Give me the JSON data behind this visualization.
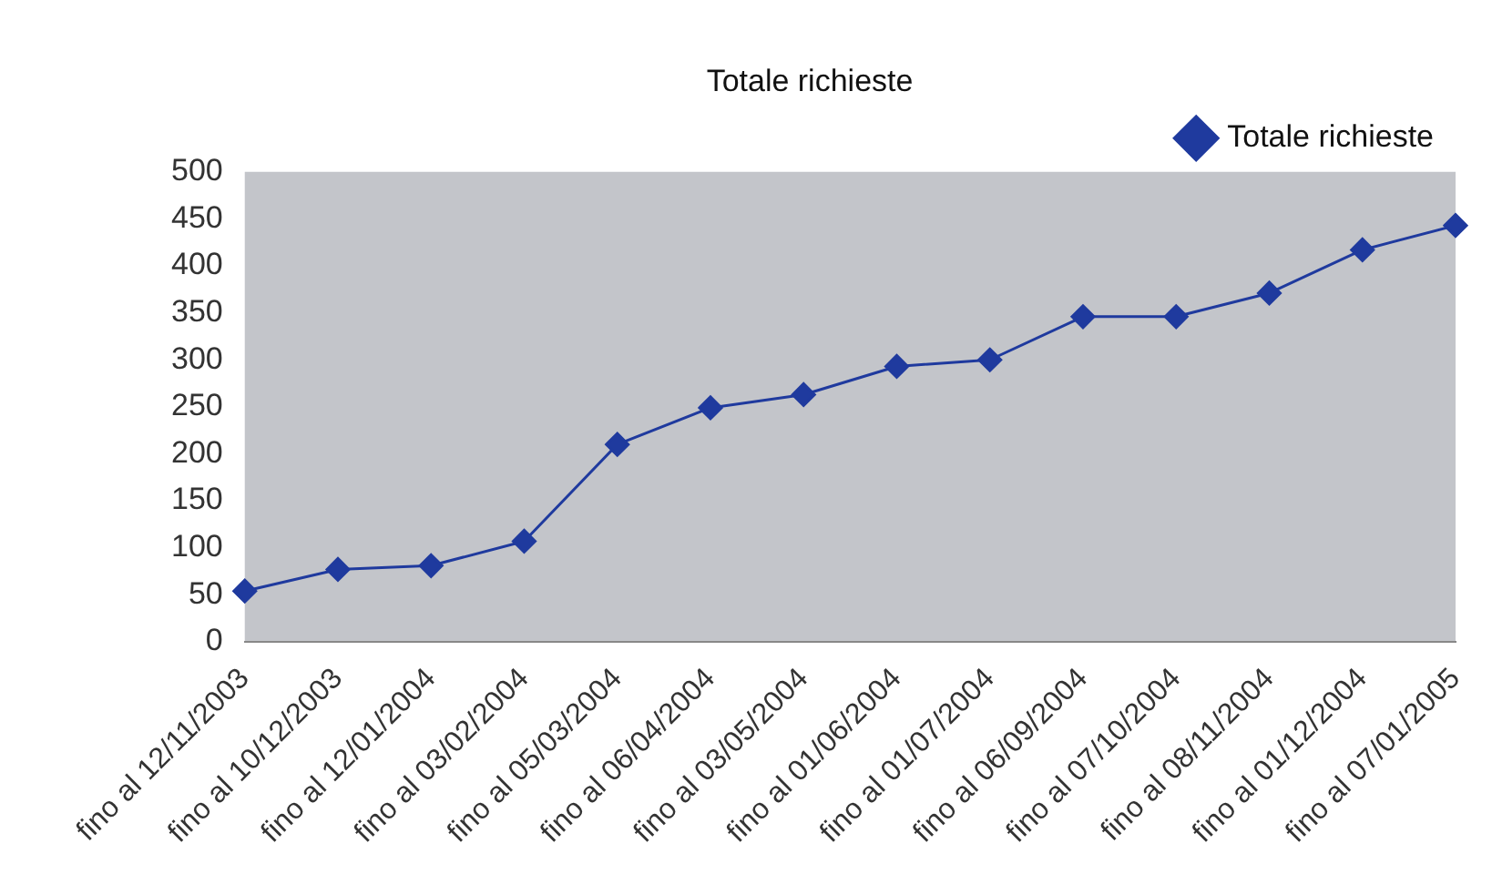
{
  "chart_data": {
    "type": "line",
    "title": "Totale richieste",
    "categories": [
      "fino al 12/11/2003",
      "fino al 10/12/2003",
      "fino al 12/01/2004",
      "fino al 03/02/2004",
      "fino al 05/03/2004",
      "fino al 06/04/2004",
      "fino al 03/05/2004",
      "fino al 01/06/2004",
      "fino al 01/07/2004",
      "fino al 06/09/2004",
      "fino al 07/10/2004",
      "fino al 08/11/2004",
      "fino al 01/12/2004",
      "fino al 07/01/2005"
    ],
    "series": [
      {
        "name": "Totale richieste",
        "color": "#1f3a9e",
        "values": [
          54,
          77,
          81,
          107,
          210,
          249,
          263,
          293,
          300,
          346,
          346,
          371,
          417,
          443
        ]
      }
    ],
    "ylim": [
      0,
      500
    ],
    "yticks": [
      0,
      50,
      100,
      150,
      200,
      250,
      300,
      350,
      400,
      450,
      500
    ],
    "grid": false,
    "legend": "top right",
    "marker": "diamond",
    "line_style": "solid"
  }
}
